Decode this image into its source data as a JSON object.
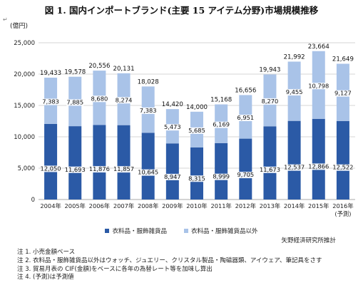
{
  "title": "図 1. 国内インポートブランド(主要 15 アイテム分野)市場規模推移",
  "unit_label": "(億円)",
  "source": "矢野経済研究所推計",
  "notes": [
    "注 1. 小売金額ベース",
    "注 2. 衣料品・服飾雑貨品以外はウォッチ、ジュエリー、クリスタル製品・陶磁器類、アイウェア、筆記具をさす",
    "注 3. 貿易月表の CIF(金額)をベースに各年の為替レート等を加味し算出",
    "注 4. (予測)は予測値"
  ],
  "colors": {
    "apparel": "#2b5aa6",
    "other": "#a9c3e8",
    "grid": "#c8c8c8"
  },
  "chart_data": {
    "type": "bar",
    "stacked": true,
    "categories": [
      "2004年",
      "2005年",
      "2006年",
      "2007年",
      "2008年",
      "2009年",
      "2010年",
      "2011年",
      "2012年",
      "2013年",
      "2014年",
      "2015年",
      "2016年"
    ],
    "category_notes": [
      "",
      "",
      "",
      "",
      "",
      "",
      "",
      "",
      "",
      "",
      "",
      "",
      "(予測)"
    ],
    "series": [
      {
        "name": "衣料品・服飾雑貨品",
        "values": [
          12050,
          11693,
          11876,
          11857,
          10645,
          8947,
          8315,
          8999,
          9705,
          11673,
          12537,
          12866,
          12522
        ]
      },
      {
        "name": "衣料品・服飾雑貨品以外",
        "values": [
          7383,
          7885,
          8680,
          8274,
          7383,
          5473,
          5685,
          6169,
          6951,
          8270,
          9455,
          10798,
          9127
        ]
      }
    ],
    "totals": [
      19433,
      19578,
      20556,
      20131,
      18028,
      14420,
      14000,
      15168,
      16656,
      19943,
      21992,
      23664,
      21649
    ],
    "ylim": [
      0,
      25000
    ],
    "yticks": [
      0,
      5000,
      10000,
      15000,
      20000,
      25000
    ],
    "ytick_labels": [
      "0",
      "5,000",
      "10,000",
      "15,000",
      "20,000",
      "25,000"
    ],
    "grid": true,
    "legend_position": "bottom"
  }
}
